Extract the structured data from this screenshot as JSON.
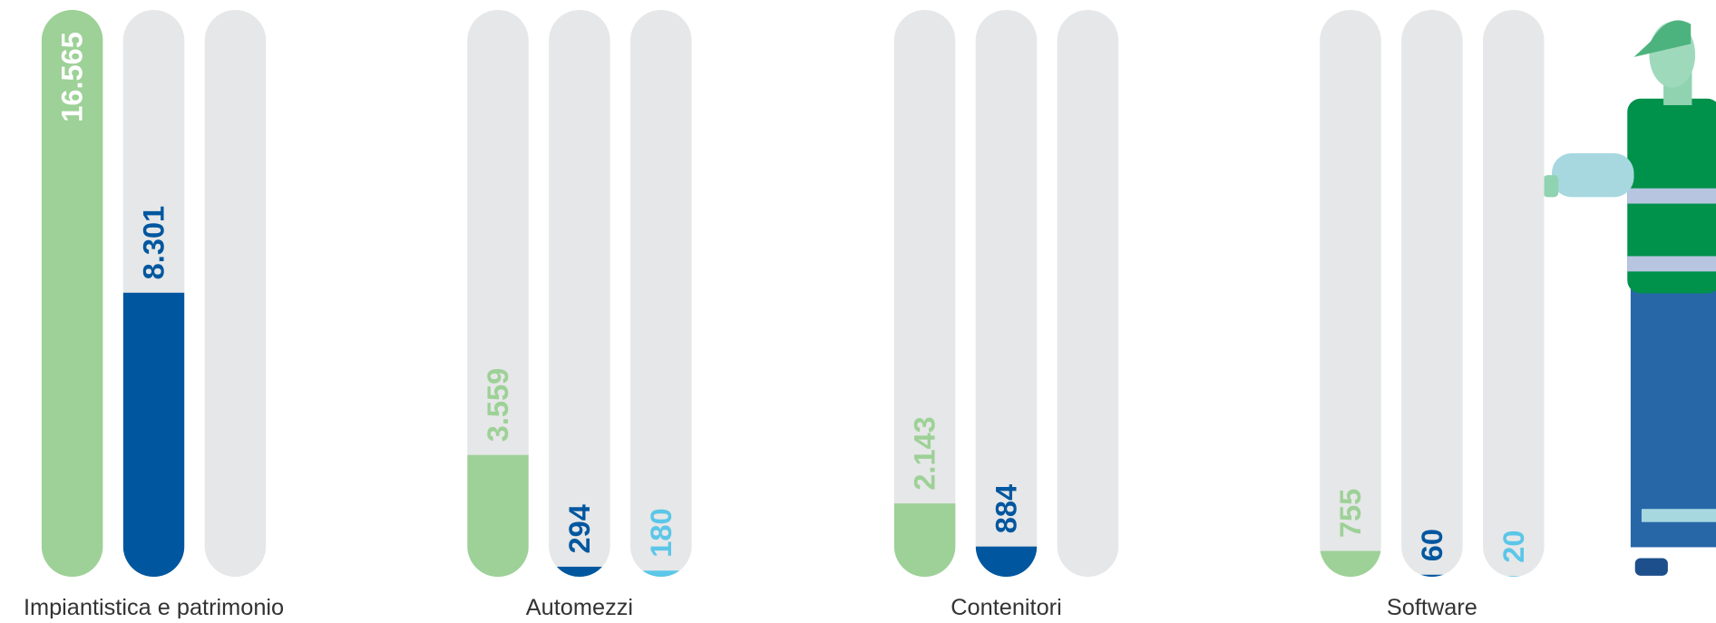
{
  "chart_data": {
    "type": "bar",
    "categories": [
      "Impiantistica e patrimonio",
      "Automezzi",
      "Contenitori",
      "Software"
    ],
    "series": [
      {
        "color": "#9dd197",
        "values": [
          16565,
          3559,
          2143,
          755
        ],
        "value_labels": [
          "16.565",
          "3.559",
          "2.143",
          "755"
        ]
      },
      {
        "color": "#00579f",
        "values": [
          8301,
          294,
          884,
          60
        ],
        "value_labels": [
          "8.301",
          "294",
          "884",
          "60"
        ]
      },
      {
        "color": "#5bc6e8",
        "values": [
          null,
          180,
          null,
          20
        ],
        "value_labels": [
          null,
          "180",
          null,
          "20"
        ]
      }
    ],
    "ylim": [
      0,
      16565
    ]
  }
}
